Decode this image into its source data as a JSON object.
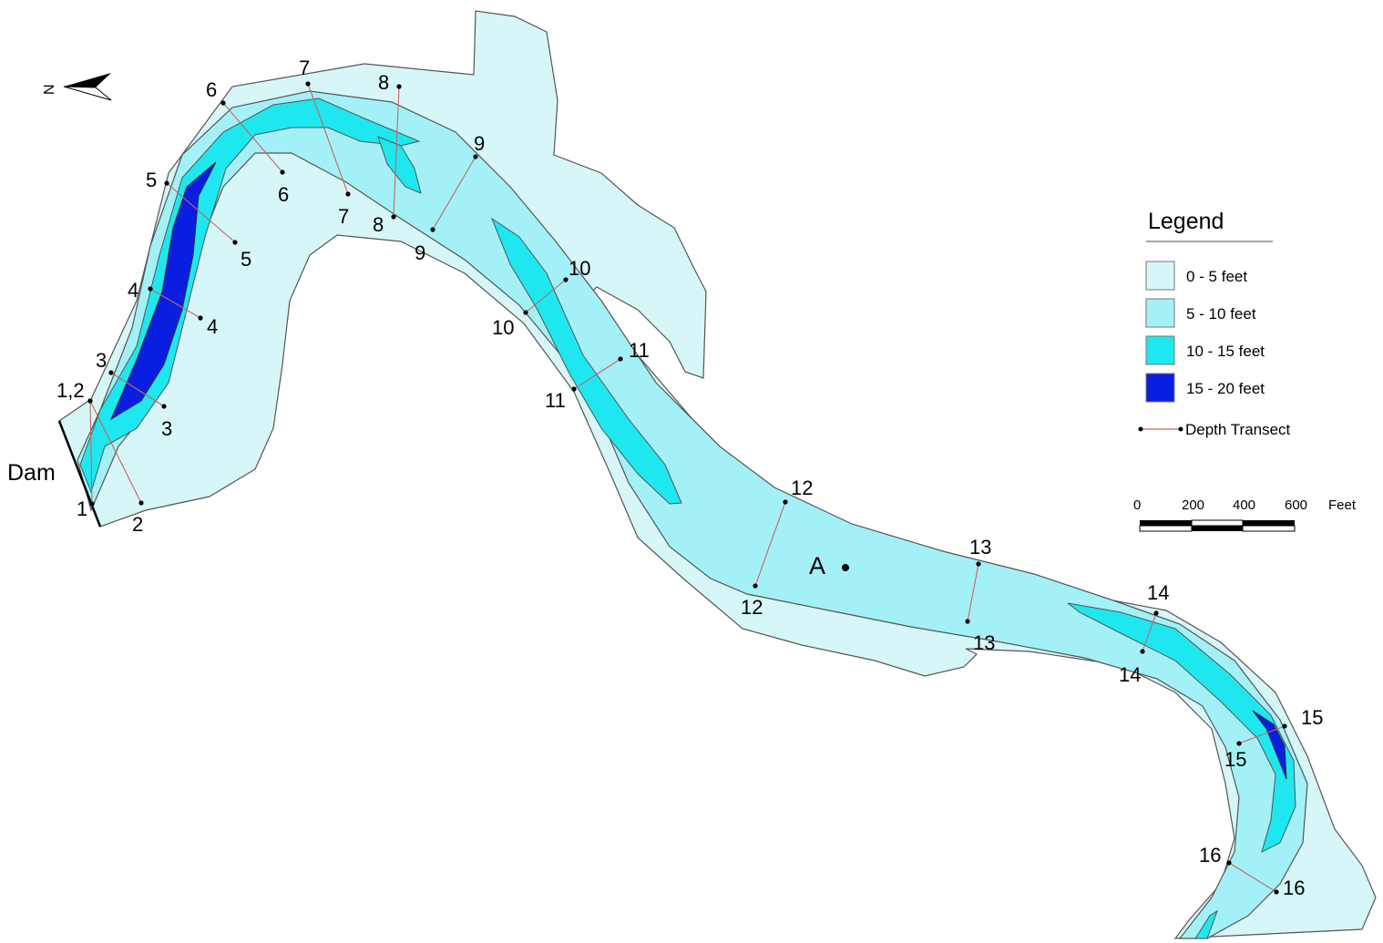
{
  "colors": {
    "depth_0_5": "#d7f6f8",
    "depth_5_10": "#a3f1f6",
    "depth_10_15": "#1fe7ef",
    "depth_15_20": "#0a1ee0",
    "transect_line": "#c86464",
    "outline": "#555555"
  },
  "north": {
    "label": "N"
  },
  "dam": {
    "label": "Dam"
  },
  "point_a": {
    "label": "A"
  },
  "transects": [
    {
      "id": "1",
      "start_label": "1,2",
      "end_label": "1"
    },
    {
      "id": "2",
      "start_label": "1,2",
      "end_label": "2"
    },
    {
      "id": "3",
      "start_label": "3",
      "end_label": "3"
    },
    {
      "id": "4",
      "start_label": "4",
      "end_label": "4"
    },
    {
      "id": "5",
      "start_label": "5",
      "end_label": "5"
    },
    {
      "id": "6",
      "start_label": "6",
      "end_label": "6"
    },
    {
      "id": "7",
      "start_label": "7",
      "end_label": "7"
    },
    {
      "id": "8",
      "start_label": "8",
      "end_label": "8"
    },
    {
      "id": "9",
      "start_label": "9",
      "end_label": "9"
    },
    {
      "id": "10",
      "start_label": "10",
      "end_label": "10"
    },
    {
      "id": "11",
      "start_label": "11",
      "end_label": "11"
    },
    {
      "id": "12",
      "start_label": "12",
      "end_label": "12"
    },
    {
      "id": "13",
      "start_label": "13",
      "end_label": "13"
    },
    {
      "id": "14",
      "start_label": "14",
      "end_label": "14"
    },
    {
      "id": "15",
      "start_label": "15",
      "end_label": "15"
    },
    {
      "id": "16",
      "start_label": "16",
      "end_label": "16"
    }
  ],
  "legend": {
    "title": "Legend",
    "items": [
      {
        "label": "0 - 5 feet",
        "color": "#d7f6f8"
      },
      {
        "label": "5 - 10 feet",
        "color": "#a3f1f6"
      },
      {
        "label": "10 - 15 feet",
        "color": "#1fe7ef"
      },
      {
        "label": "15 - 20 feet",
        "color": "#0a1ee0"
      }
    ],
    "transect_label": "Depth Transect"
  },
  "scale_bar": {
    "ticks": [
      "0",
      "200",
      "400",
      "600"
    ],
    "unit": "Feet"
  }
}
